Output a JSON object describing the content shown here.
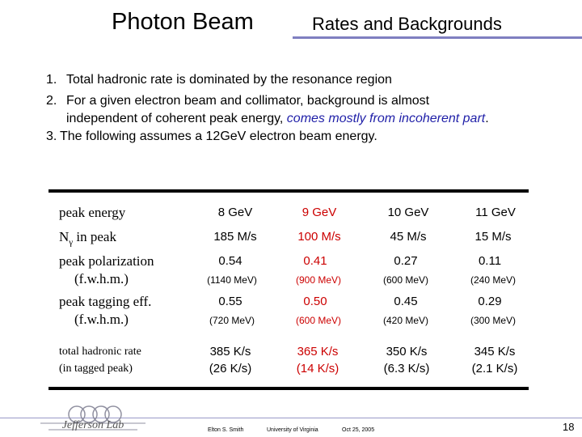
{
  "header": {
    "title": "Photon Beam",
    "subtitle": "Rates and Backgrounds"
  },
  "points": [
    {
      "num": "1.",
      "text": "Total hadronic rate is dominated by the resonance region"
    },
    {
      "num": "2.",
      "text": "For a given electron beam and collimator, background is almost"
    },
    {
      "text_cont": "independent of coherent peak energy, ",
      "emph": "comes mostly from incoherent part",
      "tail": "."
    },
    {
      "num": "3.",
      "text": "The following assumes a 12GeV electron beam energy."
    }
  ],
  "table": {
    "row_labels": {
      "energy": "peak energy",
      "rate_prefix": "N",
      "rate_sub": "γ",
      "rate_suffix": " in peak",
      "pol": "peak polarization",
      "pol_sub": "(f.w.h.m.)",
      "tag": "peak tagging eff.",
      "tag_sub": "(f.w.h.m.)",
      "had": "total hadronic rate",
      "had_sub": "(in tagged peak)"
    },
    "columns": [
      {
        "energy": "8 GeV",
        "rate": "185 M/s",
        "pol": "0.54",
        "pol_w": "(1140 MeV)",
        "tag": "0.55",
        "tag_w": "(720 MeV)",
        "had": "385 K/s",
        "had_sub": "(26 K/s)"
      },
      {
        "energy": "9 GeV",
        "rate": "100 M/s",
        "pol": "0.41",
        "pol_w": "(900 MeV)",
        "tag": "0.50",
        "tag_w": "(600 MeV)",
        "had": "365 K/s",
        "had_sub": "(14 K/s)"
      },
      {
        "energy": "10 GeV",
        "rate": "45 M/s",
        "pol": "0.27",
        "pol_w": "(600 MeV)",
        "tag": "0.45",
        "tag_w": "(420 MeV)",
        "had": "350 K/s",
        "had_sub": "(6.3 K/s)"
      },
      {
        "energy": "11 GeV",
        "rate": "15 M/s",
        "pol": "0.11",
        "pol_w": "(240 MeV)",
        "tag": "0.29",
        "tag_w": "(300 MeV)",
        "had": "345 K/s",
        "had_sub": "(2.1 K/s)"
      }
    ]
  },
  "footer": {
    "logo_text": "Jefferson Lab",
    "author": "Elton S. Smith",
    "institution": "University of Virginia",
    "date": "Oct 25, 2005",
    "page": "18"
  },
  "colors": {
    "highlight_red": "#cc0000",
    "emphasis_blue": "#1f1fa8",
    "rule": "#7f7fc0"
  }
}
